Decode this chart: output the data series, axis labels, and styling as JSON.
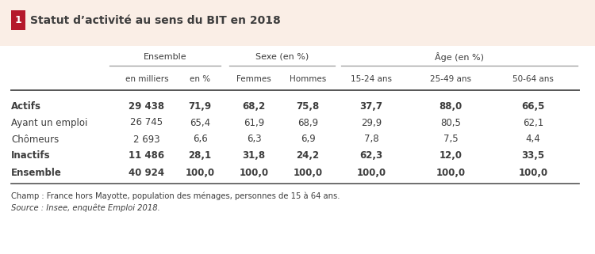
{
  "title": "Statut d’activité au sens du BIT en 2018",
  "title_number": "1",
  "background_color": "#faeee6",
  "red_box_color": "#b5182b",
  "col_group_headers": [
    "Ensemble",
    "Sexe (en %)",
    "Âge (en %)"
  ],
  "col_headers": [
    "en milliers",
    "en %",
    "Femmes",
    "Hommes",
    "15-24 ans",
    "25-49 ans",
    "50-64 ans"
  ],
  "row_labels": [
    "Actifs",
    "Ayant un emploi",
    "Chômeurs",
    "Inactifs",
    "Ensemble"
  ],
  "row_bold": [
    true,
    false,
    false,
    true,
    true
  ],
  "data": [
    [
      "29 438",
      "71,9",
      "68,2",
      "75,8",
      "37,7",
      "88,0",
      "66,5"
    ],
    [
      "26 745",
      "65,4",
      "61,9",
      "68,9",
      "29,9",
      "80,5",
      "62,1"
    ],
    [
      "2 693",
      "6,6",
      "6,3",
      "6,9",
      "7,8",
      "7,5",
      "4,4"
    ],
    [
      "11 486",
      "28,1",
      "31,8",
      "24,2",
      "62,3",
      "12,0",
      "33,5"
    ],
    [
      "40 924",
      "100,0",
      "100,0",
      "100,0",
      "100,0",
      "100,0",
      "100,0"
    ]
  ],
  "footnote1": "Champ : France hors Mayotte, population des ménages, personnes de 15 à 64 ans.",
  "footnote2": "Source : Insee, enquête Emploi 2018.",
  "text_color": "#3d3d3d",
  "line_color": "#999999",
  "thick_line_color": "#555555"
}
